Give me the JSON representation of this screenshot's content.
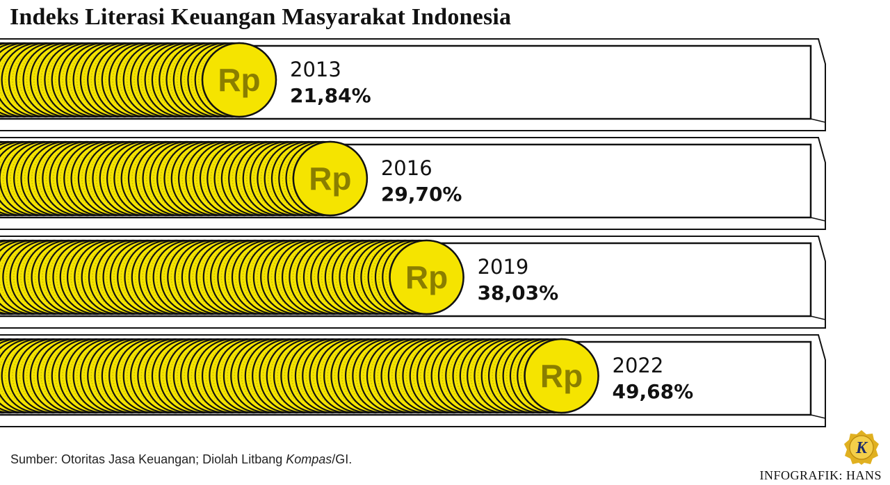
{
  "title": "Indeks Literasi Keuangan Masyarakat Indonesia",
  "coin_label": "Rp",
  "source": {
    "prefix": "Sumber: Otoritas Jasa Keuangan; Diolah Litbang ",
    "italic": "Kompas",
    "suffix": "/GI."
  },
  "credit": "INFOGRAFIK: HANS",
  "logo_letter": "K",
  "colors": {
    "coin": "#F5E400",
    "coin_dark": "#D4C400",
    "outline": "#111111",
    "logo_gold": "#E0B020"
  },
  "chart_data": {
    "type": "bar",
    "orientation": "horizontal",
    "categories": [
      "2013",
      "2016",
      "2019",
      "2022"
    ],
    "values": [
      21.84,
      29.7,
      38.03,
      49.68
    ],
    "value_labels": [
      "21,84%",
      "29,70%",
      "38,03%",
      "49,68%"
    ],
    "unit": "%",
    "xlim": [
      0,
      100
    ]
  }
}
